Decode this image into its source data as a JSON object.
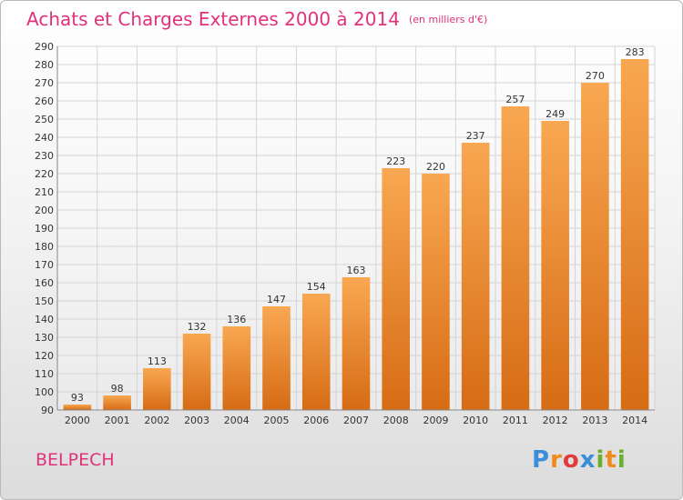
{
  "title": "Achats et Charges Externes 2000 à 2014",
  "unit": "(en milliers d'€)",
  "commune": "BELPECH",
  "logo": {
    "text": "Proxiti",
    "letter_colors": [
      "#3a8fd8",
      "#f08a1c",
      "#e23a3a",
      "#3a8fd8",
      "#6ab02e",
      "#f08a1c",
      "#6ab02e"
    ]
  },
  "colors": {
    "title": "#e0317b",
    "bar_light": "#f9a752",
    "bar_dark": "#d66c14",
    "grid": "#d4d4d4"
  },
  "chart_data": {
    "type": "bar",
    "categories": [
      "2000",
      "2001",
      "2002",
      "2003",
      "2004",
      "2005",
      "2006",
      "2007",
      "2008",
      "2009",
      "2010",
      "2011",
      "2012",
      "2013",
      "2014"
    ],
    "values": [
      93,
      98,
      113,
      132,
      136,
      147,
      154,
      163,
      223,
      220,
      237,
      257,
      249,
      270,
      283
    ],
    "ylim": [
      90,
      290
    ],
    "yticks": [
      90,
      100,
      110,
      120,
      130,
      140,
      150,
      160,
      170,
      180,
      190,
      200,
      210,
      220,
      230,
      240,
      250,
      260,
      270,
      280,
      290
    ],
    "grid": true,
    "data_labels": true
  }
}
